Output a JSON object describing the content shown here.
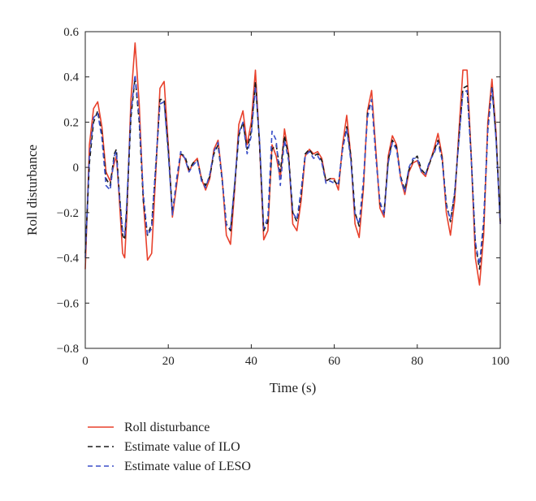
{
  "chart_data": {
    "type": "line",
    "title": "",
    "xlabel": "Time (s)",
    "ylabel": "Roll disturbance",
    "xlim": [
      0,
      100
    ],
    "ylim": [
      -0.8,
      0.6
    ],
    "xticks": [
      0,
      20,
      40,
      60,
      80,
      100
    ],
    "yticks": [
      0.6,
      0.4,
      0.2,
      0,
      -0.2,
      -0.4,
      -0.6,
      -0.8
    ],
    "xtick_labels": [
      "0",
      "20",
      "40",
      "60",
      "80",
      "100"
    ],
    "ytick_labels": [
      "0.6",
      "0.4",
      "0.2",
      "0",
      "−0.2",
      "−0.4",
      "−0.6",
      "−0.8"
    ],
    "grid": false,
    "legend_position": "below",
    "series": [
      {
        "name": "Roll disturbance",
        "color": "#e8412c",
        "dash": "solid",
        "points": [
          [
            0,
            -0.45
          ],
          [
            1,
            0.1
          ],
          [
            2,
            0.26
          ],
          [
            3,
            0.29
          ],
          [
            4,
            0.18
          ],
          [
            5,
            -0.02
          ],
          [
            6,
            -0.06
          ],
          [
            7,
            0.02
          ],
          [
            7.5,
            0.05
          ],
          [
            8,
            -0.08
          ],
          [
            9,
            -0.38
          ],
          [
            9.5,
            -0.4
          ],
          [
            10,
            -0.22
          ],
          [
            11,
            0.3
          ],
          [
            12,
            0.55
          ],
          [
            13,
            0.28
          ],
          [
            14,
            -0.15
          ],
          [
            15,
            -0.41
          ],
          [
            16,
            -0.38
          ],
          [
            17,
            -0.02
          ],
          [
            18,
            0.35
          ],
          [
            19,
            0.38
          ],
          [
            20,
            0.1
          ],
          [
            21,
            -0.22
          ],
          [
            22,
            -0.08
          ],
          [
            23,
            0.06
          ],
          [
            24,
            0.04
          ],
          [
            25,
            -0.02
          ],
          [
            26,
            0.02
          ],
          [
            27,
            0.04
          ],
          [
            28,
            -0.05
          ],
          [
            29,
            -0.1
          ],
          [
            30,
            -0.05
          ],
          [
            31,
            0.08
          ],
          [
            32,
            0.12
          ],
          [
            33,
            -0.05
          ],
          [
            34,
            -0.3
          ],
          [
            35,
            -0.34
          ],
          [
            36,
            -0.1
          ],
          [
            37,
            0.19
          ],
          [
            38,
            0.25
          ],
          [
            39,
            0.1
          ],
          [
            40,
            0.2
          ],
          [
            41,
            0.43
          ],
          [
            42,
            0.1
          ],
          [
            43,
            -0.32
          ],
          [
            44,
            -0.28
          ],
          [
            45,
            0.1
          ],
          [
            46,
            0.05
          ],
          [
            47,
            -0.05
          ],
          [
            48,
            0.17
          ],
          [
            49,
            0.06
          ],
          [
            50,
            -0.25
          ],
          [
            51,
            -0.28
          ],
          [
            52,
            -0.15
          ],
          [
            53,
            0.05
          ],
          [
            54,
            0.08
          ],
          [
            55,
            0.06
          ],
          [
            56,
            0.07
          ],
          [
            57,
            0.04
          ],
          [
            58,
            -0.06
          ],
          [
            59,
            -0.05
          ],
          [
            60,
            -0.05
          ],
          [
            61,
            -0.1
          ],
          [
            62,
            0.1
          ],
          [
            63,
            0.23
          ],
          [
            64,
            0.05
          ],
          [
            65,
            -0.25
          ],
          [
            66,
            -0.31
          ],
          [
            67,
            -0.1
          ],
          [
            68,
            0.25
          ],
          [
            69,
            0.34
          ],
          [
            70,
            0.08
          ],
          [
            71,
            -0.18
          ],
          [
            72,
            -0.22
          ],
          [
            73,
            0.05
          ],
          [
            74,
            0.14
          ],
          [
            75,
            0.1
          ],
          [
            76,
            -0.05
          ],
          [
            77,
            -0.12
          ],
          [
            78,
            -0.02
          ],
          [
            79,
            0.02
          ],
          [
            80,
            0.03
          ],
          [
            81,
            -0.02
          ],
          [
            82,
            -0.04
          ],
          [
            83,
            0.02
          ],
          [
            84,
            0.08
          ],
          [
            85,
            0.15
          ],
          [
            86,
            0.05
          ],
          [
            87,
            -0.2
          ],
          [
            88,
            -0.3
          ],
          [
            89,
            -0.15
          ],
          [
            90,
            0.15
          ],
          [
            91,
            0.43
          ],
          [
            92,
            0.43
          ],
          [
            93,
            0.05
          ],
          [
            94,
            -0.4
          ],
          [
            95,
            -0.52
          ],
          [
            96,
            -0.3
          ],
          [
            97,
            0.2
          ],
          [
            98,
            0.39
          ],
          [
            99,
            0.15
          ],
          [
            100,
            -0.25
          ]
        ]
      },
      {
        "name": "Estimate value of ILO",
        "color": "#1a1a1a",
        "dash": "6,4",
        "points": [
          [
            0,
            -0.38
          ],
          [
            1,
            0.02
          ],
          [
            2,
            0.2
          ],
          [
            3,
            0.25
          ],
          [
            4,
            0.15
          ],
          [
            5,
            -0.05
          ],
          [
            6,
            -0.08
          ],
          [
            7,
            0.06
          ],
          [
            7.5,
            0.08
          ],
          [
            8,
            -0.06
          ],
          [
            9,
            -0.3
          ],
          [
            9.5,
            -0.32
          ],
          [
            10,
            -0.18
          ],
          [
            11,
            0.22
          ],
          [
            12,
            0.4
          ],
          [
            13,
            0.2
          ],
          [
            14,
            -0.15
          ],
          [
            15,
            -0.3
          ],
          [
            16,
            -0.25
          ],
          [
            17,
            0.0
          ],
          [
            18,
            0.3
          ],
          [
            19,
            0.3
          ],
          [
            20,
            0.08
          ],
          [
            21,
            -0.2
          ],
          [
            22,
            -0.06
          ],
          [
            23,
            0.06
          ],
          [
            24,
            0.05
          ],
          [
            25,
            -0.01
          ],
          [
            26,
            0.02
          ],
          [
            27,
            0.03
          ],
          [
            28,
            -0.05
          ],
          [
            29,
            -0.08
          ],
          [
            30,
            -0.04
          ],
          [
            31,
            0.06
          ],
          [
            32,
            0.1
          ],
          [
            33,
            -0.06
          ],
          [
            34,
            -0.25
          ],
          [
            35,
            -0.28
          ],
          [
            36,
            -0.08
          ],
          [
            37,
            0.14
          ],
          [
            38,
            0.2
          ],
          [
            39,
            0.08
          ],
          [
            40,
            0.16
          ],
          [
            41,
            0.38
          ],
          [
            42,
            0.1
          ],
          [
            43,
            -0.28
          ],
          [
            44,
            -0.24
          ],
          [
            45,
            0.08
          ],
          [
            46,
            0.1
          ],
          [
            47,
            -0.02
          ],
          [
            48,
            0.14
          ],
          [
            49,
            0.05
          ],
          [
            50,
            -0.2
          ],
          [
            51,
            -0.24
          ],
          [
            52,
            -0.12
          ],
          [
            53,
            0.06
          ],
          [
            54,
            0.08
          ],
          [
            55,
            0.05
          ],
          [
            56,
            0.06
          ],
          [
            57,
            0.03
          ],
          [
            58,
            -0.06
          ],
          [
            59,
            -0.05
          ],
          [
            60,
            -0.06
          ],
          [
            61,
            -0.08
          ],
          [
            62,
            0.08
          ],
          [
            63,
            0.18
          ],
          [
            64,
            0.05
          ],
          [
            65,
            -0.2
          ],
          [
            66,
            -0.26
          ],
          [
            67,
            -0.08
          ],
          [
            68,
            0.24
          ],
          [
            69,
            0.3
          ],
          [
            70,
            0.06
          ],
          [
            71,
            -0.16
          ],
          [
            72,
            -0.2
          ],
          [
            73,
            0.03
          ],
          [
            74,
            0.12
          ],
          [
            75,
            0.09
          ],
          [
            76,
            -0.04
          ],
          [
            77,
            -0.1
          ],
          [
            78,
            -0.01
          ],
          [
            79,
            0.03
          ],
          [
            80,
            0.05
          ],
          [
            81,
            -0.01
          ],
          [
            82,
            -0.03
          ],
          [
            83,
            0.02
          ],
          [
            84,
            0.07
          ],
          [
            85,
            0.12
          ],
          [
            86,
            0.04
          ],
          [
            87,
            -0.16
          ],
          [
            88,
            -0.24
          ],
          [
            89,
            -0.12
          ],
          [
            90,
            0.12
          ],
          [
            91,
            0.35
          ],
          [
            92,
            0.36
          ],
          [
            93,
            0.05
          ],
          [
            94,
            -0.34
          ],
          [
            95,
            -0.45
          ],
          [
            96,
            -0.25
          ],
          [
            97,
            0.17
          ],
          [
            98,
            0.36
          ],
          [
            99,
            0.13
          ],
          [
            100,
            -0.24
          ]
        ]
      },
      {
        "name": "Estimate value of LESO",
        "color": "#3b4fc9",
        "dash": "6,4",
        "points": [
          [
            0,
            -0.4
          ],
          [
            1,
            0.05
          ],
          [
            2,
            0.22
          ],
          [
            3,
            0.24
          ],
          [
            4,
            0.13
          ],
          [
            5,
            -0.08
          ],
          [
            6,
            -0.1
          ],
          [
            7,
            0.05
          ],
          [
            7.5,
            0.07
          ],
          [
            8,
            -0.08
          ],
          [
            9,
            -0.28
          ],
          [
            9.5,
            -0.3
          ],
          [
            10,
            -0.16
          ],
          [
            11,
            0.24
          ],
          [
            12,
            0.41
          ],
          [
            13,
            0.22
          ],
          [
            14,
            -0.12
          ],
          [
            15,
            -0.3
          ],
          [
            16,
            -0.27
          ],
          [
            17,
            0.02
          ],
          [
            18,
            0.28
          ],
          [
            19,
            0.29
          ],
          [
            20,
            0.06
          ],
          [
            21,
            -0.21
          ],
          [
            22,
            -0.05
          ],
          [
            23,
            0.07
          ],
          [
            24,
            0.04
          ],
          [
            25,
            -0.02
          ],
          [
            26,
            0.01
          ],
          [
            27,
            0.03
          ],
          [
            28,
            -0.06
          ],
          [
            29,
            -0.09
          ],
          [
            30,
            -0.03
          ],
          [
            31,
            0.07
          ],
          [
            32,
            0.11
          ],
          [
            33,
            -0.05
          ],
          [
            34,
            -0.26
          ],
          [
            35,
            -0.27
          ],
          [
            36,
            -0.07
          ],
          [
            37,
            0.15
          ],
          [
            38,
            0.2
          ],
          [
            39,
            0.06
          ],
          [
            40,
            0.14
          ],
          [
            41,
            0.36
          ],
          [
            42,
            0.12
          ],
          [
            43,
            -0.27
          ],
          [
            44,
            -0.22
          ],
          [
            45,
            0.16
          ],
          [
            46,
            0.12
          ],
          [
            47,
            -0.08
          ],
          [
            48,
            0.12
          ],
          [
            49,
            0.03
          ],
          [
            50,
            -0.2
          ],
          [
            51,
            -0.23
          ],
          [
            52,
            -0.1
          ],
          [
            53,
            0.05
          ],
          [
            54,
            0.07
          ],
          [
            55,
            0.04
          ],
          [
            56,
            0.05
          ],
          [
            57,
            0.02
          ],
          [
            58,
            -0.07
          ],
          [
            59,
            -0.06
          ],
          [
            60,
            -0.07
          ],
          [
            61,
            -0.07
          ],
          [
            62,
            0.08
          ],
          [
            63,
            0.17
          ],
          [
            64,
            0.03
          ],
          [
            65,
            -0.21
          ],
          [
            66,
            -0.25
          ],
          [
            67,
            -0.06
          ],
          [
            68,
            0.22
          ],
          [
            69,
            0.3
          ],
          [
            70,
            0.05
          ],
          [
            71,
            -0.15
          ],
          [
            72,
            -0.21
          ],
          [
            73,
            0.02
          ],
          [
            74,
            0.11
          ],
          [
            75,
            0.08
          ],
          [
            76,
            -0.05
          ],
          [
            77,
            -0.11
          ],
          [
            78,
            0.0
          ],
          [
            79,
            0.04
          ],
          [
            80,
            0.04
          ],
          [
            81,
            -0.02
          ],
          [
            82,
            -0.03
          ],
          [
            83,
            0.03
          ],
          [
            84,
            0.06
          ],
          [
            85,
            0.11
          ],
          [
            86,
            0.03
          ],
          [
            87,
            -0.17
          ],
          [
            88,
            -0.23
          ],
          [
            89,
            -0.11
          ],
          [
            90,
            0.11
          ],
          [
            91,
            0.33
          ],
          [
            92,
            0.34
          ],
          [
            93,
            0.04
          ],
          [
            94,
            -0.33
          ],
          [
            95,
            -0.43
          ],
          [
            96,
            -0.23
          ],
          [
            97,
            0.16
          ],
          [
            98,
            0.35
          ],
          [
            99,
            0.12
          ],
          [
            100,
            -0.25
          ]
        ]
      }
    ]
  }
}
